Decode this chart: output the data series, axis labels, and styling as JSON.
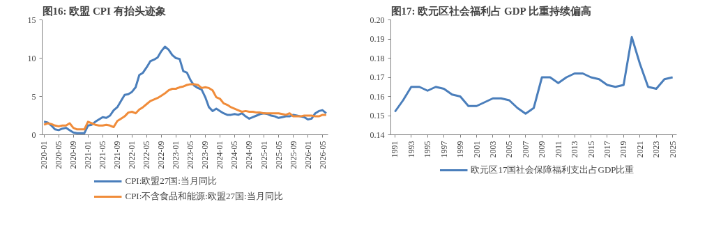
{
  "chart_data": [
    {
      "type": "line",
      "title": "图16: 欧盟 CPI 有抬头迹象",
      "categories": [
        "2020-01",
        null,
        null,
        null,
        "2020-05",
        null,
        null,
        null,
        "2020-09",
        null,
        null,
        null,
        "2021-01",
        null,
        null,
        null,
        "2021-05",
        null,
        null,
        null,
        "2021-09",
        null,
        null,
        null,
        "2022-01",
        null,
        null,
        null,
        "2022-05",
        null,
        null,
        null,
        "2022-09",
        null,
        null,
        null,
        "2023-01",
        null,
        null,
        null,
        "2023-05",
        null,
        null,
        null,
        "2023-09",
        null,
        null,
        null,
        "2024-01",
        null,
        null,
        null,
        "2024-05",
        null,
        null,
        null,
        "2024-09",
        null,
        null,
        null,
        "2025-01",
        null,
        null,
        null,
        "2025-05",
        null,
        null,
        null,
        "2025-09",
        null,
        null,
        null,
        "2026-01",
        null,
        null,
        null,
        "2026-05",
        null
      ],
      "series": [
        {
          "name": "CPI:欧盟27国:当月同比",
          "color": "#4a7ebb",
          "values": [
            1.7,
            1.6,
            1.2,
            0.7,
            0.6,
            0.8,
            0.9,
            0.6,
            0.3,
            0.2,
            0.2,
            0.2,
            1.2,
            1.3,
            1.7,
            2.0,
            2.3,
            2.2,
            2.5,
            3.2,
            3.6,
            4.4,
            5.2,
            5.3,
            5.6,
            6.2,
            7.8,
            8.1,
            8.8,
            9.6,
            9.8,
            10.1,
            10.9,
            11.5,
            11.1,
            10.4,
            10.0,
            9.9,
            8.3,
            8.1,
            7.1,
            6.4,
            6.1,
            5.9,
            4.9,
            3.6,
            3.1,
            3.4,
            3.1,
            2.8,
            2.6,
            2.6,
            2.7,
            2.6,
            2.8,
            2.4,
            2.1,
            2.3,
            2.5,
            2.7,
            2.8,
            2.7,
            2.5,
            2.4,
            2.2,
            2.3,
            2.4,
            2.4,
            2.6,
            2.5,
            2.4,
            2.3,
            2.0,
            2.1,
            2.8,
            3.1,
            3.2,
            2.8
          ]
        },
        {
          "name": "CPI:不含食品和能源:欧盟27国:当月同比",
          "color": "#f08c3a",
          "values": [
            1.3,
            1.5,
            1.4,
            1.2,
            1.1,
            1.2,
            1.2,
            1.5,
            0.9,
            0.7,
            0.7,
            0.7,
            1.7,
            1.5,
            1.3,
            1.2,
            1.2,
            1.3,
            1.2,
            1.0,
            1.8,
            2.1,
            2.4,
            2.9,
            3.0,
            2.8,
            3.3,
            3.6,
            4.0,
            4.4,
            4.6,
            4.8,
            5.1,
            5.4,
            5.8,
            6.0,
            6.0,
            6.2,
            6.3,
            6.5,
            6.6,
            6.6,
            6.5,
            6.1,
            6.2,
            6.1,
            5.8,
            4.9,
            4.7,
            4.1,
            3.9,
            3.6,
            3.4,
            3.2,
            3.0,
            3.1,
            3.0,
            3.0,
            2.9,
            2.9,
            2.8,
            2.8,
            2.8,
            2.8,
            2.8,
            2.7,
            2.6,
            2.8,
            2.4,
            2.4,
            2.4,
            2.5,
            2.5,
            2.5,
            2.4,
            2.4,
            2.6,
            2.6
          ]
        }
      ],
      "ylim": [
        0,
        15
      ],
      "yticks": [
        0,
        5,
        10,
        15
      ],
      "grid": false,
      "legend": "bottom",
      "line_style": "solid"
    },
    {
      "type": "line",
      "title": "图17: 欧元区社会福利占 GDP 比重持续偏高",
      "categories": [
        "1991",
        null,
        "1993",
        null,
        "1995",
        null,
        "1997",
        null,
        "1999",
        null,
        "2001",
        null,
        "2003",
        null,
        "2005",
        null,
        "2007",
        null,
        "2009",
        null,
        "2011",
        null,
        "2013",
        null,
        "2015",
        null,
        "2017",
        null,
        "2019",
        null,
        "2021",
        null,
        "2023",
        null,
        "2025"
      ],
      "series": [
        {
          "name": "欧元区17国社会保障福利支出占GDP比重",
          "color": "#4a7ebb",
          "values": [
            0.152,
            0.158,
            0.165,
            0.165,
            0.163,
            0.165,
            0.164,
            0.161,
            0.16,
            0.155,
            0.155,
            0.157,
            0.159,
            0.159,
            0.158,
            0.154,
            0.151,
            0.154,
            0.17,
            0.17,
            0.167,
            0.17,
            0.172,
            0.172,
            0.17,
            0.169,
            0.166,
            0.165,
            0.166,
            0.191,
            0.177,
            0.165,
            0.164,
            0.169,
            0.17
          ]
        }
      ],
      "ylim": [
        0.14,
        0.2
      ],
      "yticks": [
        {
          "value": 0.14,
          "label": "0.14"
        },
        {
          "value": 0.15,
          "label": "0.15"
        },
        {
          "value": 0.16,
          "label": "0.16"
        },
        {
          "value": 0.17,
          "label": "0.17"
        },
        {
          "value": 0.18,
          "label": "0.18"
        },
        {
          "value": 0.19,
          "label": "0.19"
        },
        {
          "value": 0.2,
          "label": "0.20"
        }
      ],
      "grid": false,
      "legend": "bottom",
      "line_style": "solid"
    }
  ]
}
